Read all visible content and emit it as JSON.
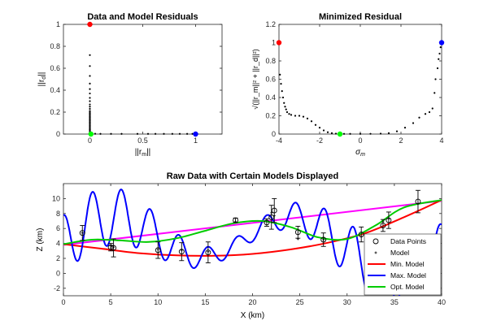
{
  "chart_data": [
    {
      "type": "scatter",
      "title": "Data and Model Residuals",
      "xlabel": "||r_m||",
      "ylabel": "||r_d||",
      "xlim": [
        -0.25,
        1.25
      ],
      "ylim": [
        0,
        1
      ],
      "xticks": [
        "0",
        "0.5",
        "1"
      ],
      "yticks": [
        "0",
        "0.2",
        "0.4",
        "0.6",
        "0.8",
        "1"
      ],
      "series": [
        {
          "values": [
            [
              0,
              0.72
            ],
            [
              0,
              0.62
            ],
            [
              0,
              0.53
            ],
            [
              0,
              0.46
            ],
            [
              0,
              0.41
            ],
            [
              0,
              0.37
            ],
            [
              0,
              0.33
            ],
            [
              0,
              0.3
            ],
            [
              0,
              0.27
            ],
            [
              0,
              0.25
            ],
            [
              0,
              0.23
            ],
            [
              0,
              0.21
            ],
            [
              0,
              0.2
            ],
            [
              0,
              0.19
            ],
            [
              0,
              0.18
            ],
            [
              0,
              0.17
            ],
            [
              0,
              0.16
            ],
            [
              0,
              0.15
            ],
            [
              0,
              0.14
            ],
            [
              0,
              0.13
            ],
            [
              0,
              0.12
            ],
            [
              0,
              0.11
            ],
            [
              0,
              0.1
            ],
            [
              0,
              0.09
            ],
            [
              0,
              0.08
            ],
            [
              0,
              0.07
            ],
            [
              0,
              0.06
            ],
            [
              0,
              0.05
            ],
            [
              0,
              0.04
            ],
            [
              0,
              0.03
            ],
            [
              0,
              0.02
            ],
            [
              0.02,
              0.005
            ],
            [
              0.05,
              0.003
            ],
            [
              0.1,
              0.002
            ],
            [
              0.2,
              0.002
            ],
            [
              0.3,
              0.002
            ],
            [
              0.45,
              0.002
            ],
            [
              0.55,
              0.002
            ],
            [
              0.62,
              0.002
            ],
            [
              0.7,
              0.002
            ],
            [
              0.78,
              0.002
            ],
            [
              0.85,
              0.002
            ],
            [
              0.92,
              0.002
            ],
            [
              0.97,
              0.002
            ]
          ]
        }
      ],
      "highlights": [
        {
          "x": 0,
          "y": 1,
          "color": "#ff0000"
        },
        {
          "x": 1,
          "y": 0,
          "color": "#0000ff"
        },
        {
          "x": 0.01,
          "y": 0,
          "color": "#00ff00"
        }
      ]
    },
    {
      "type": "scatter",
      "title": "Minimized Residual",
      "xlabel": "σ_m",
      "ylabel": "√(||r_m||² + ||r_d||²)",
      "xlim": [
        -4,
        4
      ],
      "ylim": [
        0,
        1.2
      ],
      "xticks": [
        "-4",
        "-2",
        "0",
        "2",
        "4"
      ],
      "yticks": [
        "0",
        "0.2",
        "0.4",
        "0.6",
        "0.8",
        "1",
        "1.2"
      ],
      "curve": [
        [
          -3.95,
          0.65
        ],
        [
          -3.9,
          0.55
        ],
        [
          -3.85,
          0.47
        ],
        [
          -3.8,
          0.4
        ],
        [
          -3.75,
          0.34
        ],
        [
          -3.7,
          0.3
        ],
        [
          -3.65,
          0.27
        ],
        [
          -3.6,
          0.24
        ],
        [
          -3.5,
          0.22
        ],
        [
          -3.4,
          0.21
        ],
        [
          -3.2,
          0.2
        ],
        [
          -3,
          0.2
        ],
        [
          -2.8,
          0.19
        ],
        [
          -2.6,
          0.17
        ],
        [
          -2.4,
          0.14
        ],
        [
          -2.2,
          0.1
        ],
        [
          -2,
          0.07
        ],
        [
          -1.8,
          0.04
        ],
        [
          -1.6,
          0.02
        ],
        [
          -1.4,
          0.01
        ],
        [
          -1.2,
          0.005
        ],
        [
          -1,
          0.003
        ],
        [
          -0.8,
          0.002
        ],
        [
          -0.5,
          0.002
        ],
        [
          0,
          0.002
        ],
        [
          0.5,
          0.003
        ],
        [
          1,
          0.005
        ],
        [
          1.4,
          0.01
        ],
        [
          1.8,
          0.03
        ],
        [
          2.2,
          0.07
        ],
        [
          2.6,
          0.12
        ],
        [
          2.9,
          0.18
        ],
        [
          3.2,
          0.22
        ],
        [
          3.4,
          0.24
        ],
        [
          3.55,
          0.28
        ],
        [
          3.65,
          0.45
        ],
        [
          3.7,
          0.6
        ],
        [
          3.8,
          0.72
        ],
        [
          3.85,
          0.82
        ],
        [
          3.9,
          0.88
        ],
        [
          3.95,
          0.95
        ]
      ],
      "highlights": [
        {
          "x": -4,
          "y": 1,
          "color": "#ff0000"
        },
        {
          "x": 4,
          "y": 1,
          "color": "#0000ff"
        },
        {
          "x": -1,
          "y": 0,
          "color": "#00ff00"
        }
      ]
    },
    {
      "type": "line",
      "title": "Raw Data with Certain Models Displayed",
      "xlabel": "X (km)",
      "ylabel": "Z (km)",
      "xlim": [
        0,
        40
      ],
      "ylim": [
        -3,
        12
      ],
      "xticks": [
        "0",
        "5",
        "10",
        "15",
        "20",
        "25",
        "30",
        "35",
        "40"
      ],
      "yticks": [
        "-2",
        "0",
        "2",
        "4",
        "6",
        "8",
        "10"
      ],
      "data_points": [
        [
          2,
          5.4
        ],
        [
          5,
          3.5
        ],
        [
          5.3,
          3.4
        ],
        [
          10,
          3.1
        ],
        [
          12.5,
          2.9
        ],
        [
          15.3,
          2.8
        ],
        [
          18.2,
          7.1
        ],
        [
          21.5,
          6.8
        ],
        [
          22,
          7.5
        ],
        [
          22.3,
          8.4
        ],
        [
          24.8,
          5.5
        ],
        [
          27.5,
          4.5
        ],
        [
          31.5,
          5.2
        ],
        [
          33.8,
          6.4
        ],
        [
          34.4,
          7.1
        ],
        [
          37.5,
          9.6
        ]
      ],
      "error_bars": [
        1,
        0.5,
        1.2,
        1.1,
        1.2,
        1.4,
        0.3,
        0.5,
        1.6,
        1.6,
        0.8,
        0.9,
        1,
        0.8,
        1.1,
        1.5
      ],
      "model_points": [
        [
          2,
          5.4
        ],
        [
          5,
          3.7
        ],
        [
          5.3,
          3.5
        ],
        [
          10,
          3.2
        ],
        [
          12.5,
          3.1
        ],
        [
          15.3,
          2.9
        ],
        [
          18.2,
          6.9
        ],
        [
          21.5,
          7.1
        ],
        [
          22,
          8.1
        ],
        [
          22.3,
          7.7
        ],
        [
          24.8,
          4.6
        ],
        [
          27.5,
          4.5
        ],
        [
          31.5,
          4.9
        ],
        [
          33.8,
          6.9
        ],
        [
          34.4,
          7.3
        ],
        [
          37.5,
          9.3
        ]
      ],
      "series": [
        {
          "name": "Min. Model",
          "color": "#ff0000",
          "points": [
            [
              0,
              3.9
            ],
            [
              4,
              3.3
            ],
            [
              8,
              2.7
            ],
            [
              12,
              2.4
            ],
            [
              16,
              2.35
            ],
            [
              20,
              2.6
            ],
            [
              24,
              3.2
            ],
            [
              28,
              4.1
            ],
            [
              32,
              5.4
            ],
            [
              36,
              7.5
            ],
            [
              40,
              9.8
            ]
          ]
        },
        {
          "name": "Max. Model",
          "color": "#0000ff"
        },
        {
          "name": "Opt. Model",
          "color": "#00cc00",
          "points": [
            [
              0,
              3.9
            ],
            [
              3,
              4.5
            ],
            [
              6,
              4.4
            ],
            [
              9,
              4.2
            ],
            [
              12,
              4.7
            ],
            [
              15,
              5.7
            ],
            [
              18,
              6.7
            ],
            [
              21,
              7
            ],
            [
              24,
              6.2
            ],
            [
              27,
              4.8
            ],
            [
              30,
              4.6
            ],
            [
              33,
              6.4
            ],
            [
              36,
              8.8
            ],
            [
              40,
              9.8
            ]
          ]
        },
        {
          "name": "Magenta",
          "color": "#ff00ff",
          "points": [
            [
              0,
              3.8
            ],
            [
              40,
              9.7
            ]
          ]
        }
      ],
      "legend": [
        "Data Points",
        "Model",
        "Min. Model",
        "Max. Model",
        "Opt. Model"
      ],
      "legend_position": "bottom-right"
    }
  ]
}
